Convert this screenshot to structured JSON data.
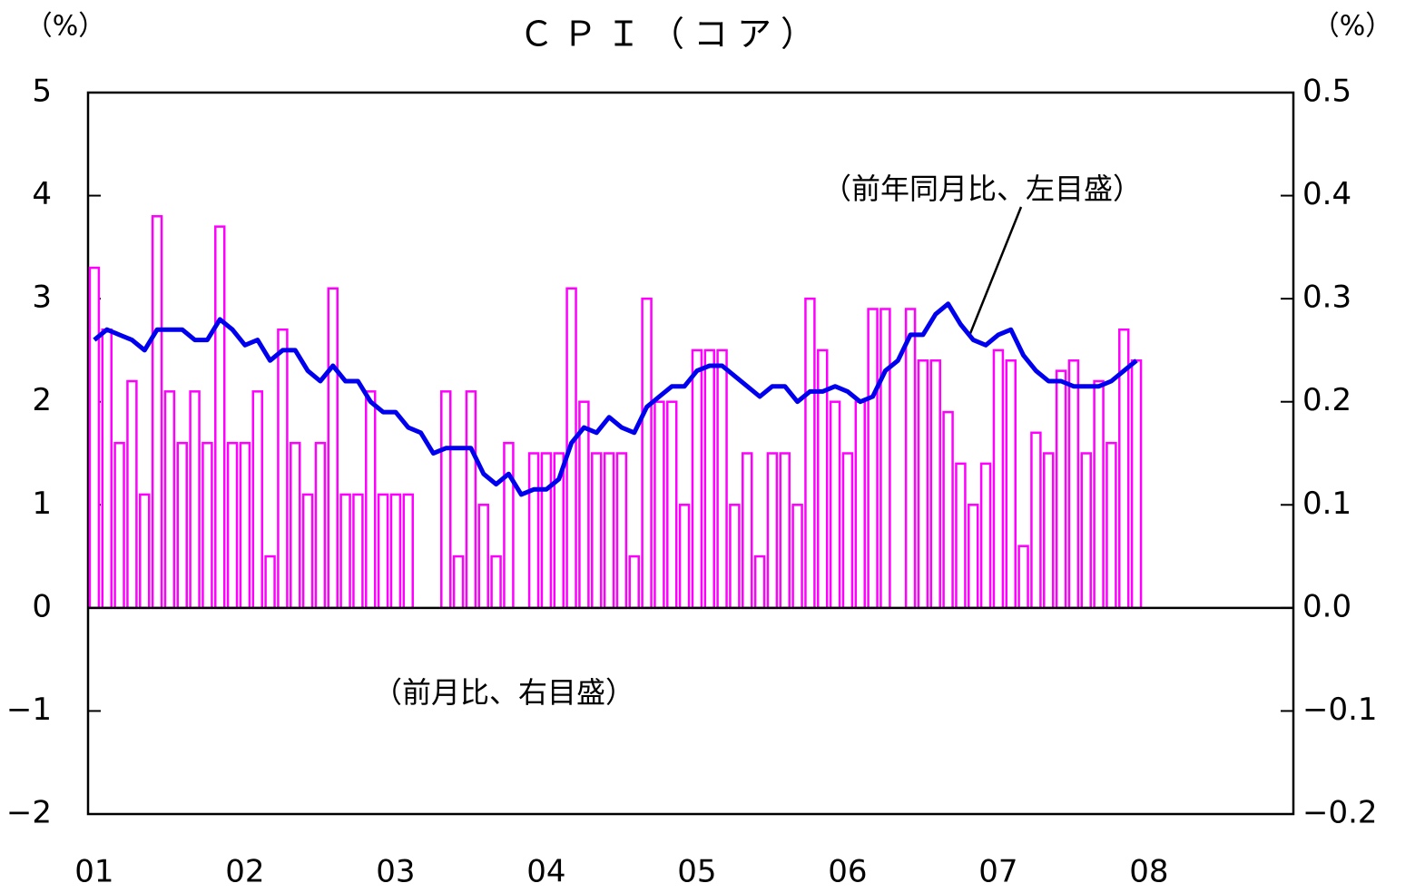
{
  "chart_data": {
    "type": "combo",
    "title": "ＣＰＩ（コア）",
    "y_label": "（%）",
    "y2_label": "（%）",
    "annotations": [
      "（前年同月比、左目盛）",
      "（前月比、右目盛）"
    ],
    "categories": [
      "01",
      null,
      null,
      null,
      null,
      null,
      null,
      null,
      null,
      null,
      null,
      null,
      "02",
      null,
      null,
      null,
      null,
      null,
      null,
      null,
      null,
      null,
      null,
      null,
      "03",
      null,
      null,
      null,
      null,
      null,
      null,
      null,
      null,
      null,
      null,
      null,
      "04",
      null,
      null,
      null,
      null,
      null,
      null,
      null,
      null,
      null,
      null,
      null,
      "05",
      null,
      null,
      null,
      null,
      null,
      null,
      null,
      null,
      null,
      null,
      null,
      "06",
      null,
      null,
      null,
      null,
      null,
      null,
      null,
      null,
      null,
      null,
      null,
      "07",
      null,
      null,
      null,
      null,
      null,
      null,
      null,
      null,
      null,
      null,
      null,
      "08",
      null,
      null,
      null,
      null,
      null,
      null,
      null,
      null,
      null,
      null,
      null
    ],
    "ylim": [
      -2,
      5
    ],
    "yticks": [
      {
        "value": -2,
        "label": "−2"
      },
      {
        "value": -1,
        "label": "−1"
      },
      0,
      1,
      2,
      3,
      4,
      5
    ],
    "y2lim": [
      -0.2,
      0.5
    ],
    "y2ticks": [
      {
        "value": -0.2,
        "label": "−0.2"
      },
      {
        "value": -0.1,
        "label": "−0.1"
      },
      {
        "value": 0,
        "label": "0.0"
      },
      0.1,
      0.2,
      0.3,
      0.4,
      0.5
    ],
    "series": [
      {
        "type": "bar",
        "axis": "y2",
        "color": "#ff00ff",
        "values": [
          0.33,
          0.27,
          0.16,
          0.22,
          0.11,
          0.38,
          0.21,
          0.16,
          0.21,
          0.16,
          0.37,
          0.16,
          0.16,
          0.21,
          0.05,
          0.27,
          0.16,
          0.11,
          0.16,
          0.31,
          0.11,
          0.11,
          0.21,
          0.11,
          0.11,
          0.11,
          0,
          0,
          0.21,
          0.05,
          0.21,
          0.1,
          0.05,
          0.16,
          0,
          0.15,
          0.15,
          0.15,
          0.31,
          0.2,
          0.15,
          0.15,
          0.15,
          0.05,
          0.3,
          0.2,
          0.2,
          0.1,
          0.25,
          0.25,
          0.25,
          0.1,
          0.15,
          0.05,
          0.15,
          0.15,
          0.1,
          0.3,
          0.25,
          0.2,
          0.15,
          0.2,
          0.29,
          0.29,
          0,
          0.29,
          0.24,
          0.24,
          0.19,
          0.14,
          0.1,
          0.14,
          0.25,
          0.24,
          0.06,
          0.17,
          0.15,
          0.23,
          0.24,
          0.15,
          0.22,
          0.16,
          0.27,
          0.24,
          null,
          null,
          null,
          null,
          null,
          null,
          null,
          null,
          null,
          null,
          null,
          null
        ]
      },
      {
        "type": "line",
        "color": "#0000ee",
        "values": [
          2.6,
          2.7,
          2.65,
          2.6,
          2.5,
          2.7,
          2.7,
          2.7,
          2.6,
          2.6,
          2.8,
          2.7,
          2.55,
          2.6,
          2.4,
          2.5,
          2.5,
          2.3,
          2.2,
          2.35,
          2.2,
          2.2,
          2.0,
          1.9,
          1.9,
          1.75,
          1.7,
          1.5,
          1.55,
          1.55,
          1.55,
          1.3,
          1.2,
          1.3,
          1.1,
          1.15,
          1.15,
          1.25,
          1.6,
          1.75,
          1.7,
          1.85,
          1.75,
          1.7,
          1.95,
          2.05,
          2.15,
          2.15,
          2.3,
          2.35,
          2.35,
          2.25,
          2.15,
          2.05,
          2.15,
          2.15,
          2.0,
          2.1,
          2.1,
          2.15,
          2.1,
          2.0,
          2.05,
          2.3,
          2.4,
          2.65,
          2.65,
          2.85,
          2.95,
          2.75,
          2.6,
          2.55,
          2.65,
          2.7,
          2.45,
          2.3,
          2.2,
          2.2,
          2.15,
          2.15,
          2.15,
          2.2,
          2.3,
          2.4,
          null,
          null,
          null,
          null,
          null,
          null,
          null,
          null,
          null,
          null,
          null,
          null
        ]
      }
    ]
  }
}
